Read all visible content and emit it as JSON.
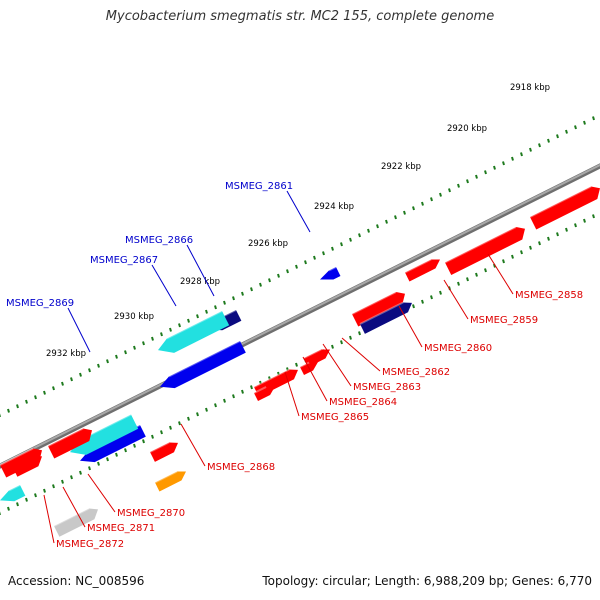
{
  "title": "Mycobacterium smegmatis str. MC2 155, complete genome",
  "footer": {
    "accession": "Accession: NC_008596",
    "summary": "Topology: circular; Length: 6,988,209 bp; Genes: 6,770"
  },
  "colors": {
    "backbone": "#8a8a8a",
    "tick": "#1e7a1e",
    "label_blue": "#0000cc",
    "label_red": "#dd0000",
    "gene_red": "#ff0000",
    "gene_blue": "#0000ee",
    "gene_navy": "#0a0a80",
    "gene_cyan": "#22e0e0",
    "gene_orange": "#ff9900",
    "gene_gray": "#c8c8c8"
  },
  "scale": {
    "labels": [
      "2918 kbp",
      "2920 kbp",
      "2922 kbp",
      "2924 kbp",
      "2926 kbp",
      "2928 kbp",
      "2930 kbp",
      "2932 kbp"
    ]
  },
  "genes": [
    {
      "id": "MSMEG_2858",
      "strand": "forward",
      "color": "red"
    },
    {
      "id": "MSMEG_2859",
      "strand": "forward",
      "color": "red"
    },
    {
      "id": "MSMEG_2860",
      "strand": "forward",
      "color": "navy"
    },
    {
      "id": "MSMEG_2861",
      "strand": "reverse",
      "color": "blue"
    },
    {
      "id": "MSMEG_2862",
      "strand": "forward",
      "color": "red"
    },
    {
      "id": "MSMEG_2863",
      "strand": "forward",
      "color": "red"
    },
    {
      "id": "MSMEG_2864",
      "strand": "forward",
      "color": "red"
    },
    {
      "id": "MSMEG_2865",
      "strand": "forward",
      "color": "red"
    },
    {
      "id": "MSMEG_2866",
      "strand": "reverse",
      "color": "navy"
    },
    {
      "id": "MSMEG_2867",
      "strand": "reverse",
      "color": "cyan"
    },
    {
      "id": "MSMEG_2868",
      "strand": "forward",
      "color": "orange"
    },
    {
      "id": "MSMEG_2869",
      "strand": "reverse",
      "color": "cyan"
    },
    {
      "id": "MSMEG_2870",
      "strand": "forward",
      "color": "red"
    },
    {
      "id": "MSMEG_2871",
      "strand": "forward",
      "color": "gray"
    },
    {
      "id": "MSMEG_2872",
      "strand": "forward",
      "color": "red"
    }
  ]
}
